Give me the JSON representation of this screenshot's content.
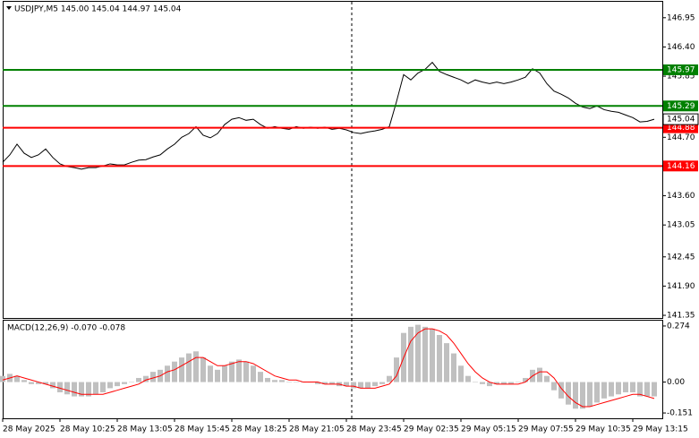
{
  "chart_data": [
    {
      "type": "line",
      "title": "USDJPY,M5  145.00 145.04 144.97 145.04",
      "categories": [
        "28 May 2025",
        null,
        null,
        null,
        null,
        null,
        null,
        null,
        "28 May 10:25",
        null,
        null,
        null,
        null,
        null,
        null,
        null,
        "28 May 13:05",
        null,
        null,
        null,
        null,
        null,
        null,
        null,
        "28 May 15:45",
        null,
        null,
        null,
        null,
        null,
        null,
        null,
        "28 May 18:25",
        null,
        null,
        null,
        null,
        null,
        null,
        null,
        "28 May 21:05",
        null,
        null,
        null,
        null,
        null,
        null,
        null,
        "28 May 23:45",
        null,
        null,
        null,
        null,
        null,
        null,
        null,
        "29 May 02:35",
        null,
        null,
        null,
        null,
        null,
        null,
        null,
        "29 May 05:15",
        null,
        null,
        null,
        null,
        null,
        null,
        null,
        "29 May 07:55",
        null,
        null,
        null,
        null,
        null,
        null,
        null,
        "29 May 10:35",
        null,
        null,
        null,
        null,
        null,
        null,
        null,
        "29 May 13:15",
        null,
        null,
        null
      ],
      "values": [
        144.23,
        144.37,
        144.57,
        144.4,
        144.32,
        144.37,
        144.48,
        144.32,
        144.2,
        144.15,
        144.13,
        144.1,
        144.13,
        144.13,
        144.16,
        144.2,
        144.18,
        144.18,
        144.23,
        144.27,
        144.28,
        144.33,
        144.37,
        144.48,
        144.57,
        144.7,
        144.77,
        144.9,
        144.74,
        144.69,
        144.77,
        144.94,
        145.04,
        145.07,
        145.02,
        145.04,
        144.94,
        144.87,
        144.9,
        144.87,
        144.85,
        144.9,
        144.87,
        144.89,
        144.87,
        144.89,
        144.85,
        144.87,
        144.84,
        144.79,
        144.77,
        144.8,
        144.82,
        144.85,
        144.9,
        145.37,
        145.88,
        145.78,
        145.91,
        145.98,
        146.11,
        145.94,
        145.88,
        145.83,
        145.78,
        145.71,
        145.78,
        145.74,
        145.71,
        145.74,
        145.71,
        145.74,
        145.78,
        145.83,
        145.99,
        145.91,
        145.71,
        145.57,
        145.51,
        145.44,
        145.34,
        145.27,
        145.24,
        145.29,
        145.22,
        145.19,
        145.17,
        145.12,
        145.07,
        144.99,
        145.0,
        145.04
      ],
      "color": "#000000",
      "levels": [
        {
          "value": 145.97,
          "color": "#008000"
        },
        {
          "value": 145.29,
          "color": "#008000"
        },
        {
          "value": 144.88,
          "color": "#ff0000"
        },
        {
          "value": 144.16,
          "color": "#ff0000"
        }
      ],
      "last_price": 145.04,
      "ylim": [
        141.3,
        147.25
      ],
      "yticks": [
        146.95,
        {
          "value": 146.4,
          "label": "146.40"
        },
        145.85,
        {
          "value": 144.7,
          "label": "144.70"
        },
        {
          "value": 143.6,
          "label": "143.60"
        },
        143.05,
        142.45,
        {
          "value": 141.9,
          "label": "141.90"
        },
        141.35
      ]
    },
    {
      "type": "bar",
      "title": "MACD(12,26,9) -0.070 -0.078",
      "series": [
        {
          "type": "bar",
          "color": "#c0c0c0",
          "values": [
            0.03,
            0.04,
            0.03,
            0.01,
            -0.01,
            -0.01,
            -0.01,
            -0.03,
            -0.05,
            -0.06,
            -0.07,
            -0.07,
            -0.07,
            -0.06,
            -0.05,
            -0.03,
            -0.02,
            -0.01,
            0,
            0.02,
            0.03,
            0.05,
            0.06,
            0.08,
            0.1,
            0.12,
            0.14,
            0.15,
            0.12,
            0.08,
            0.06,
            0.08,
            0.1,
            0.11,
            0.1,
            0.08,
            0.05,
            0.02,
            0.01,
            0.01,
            0,
            0,
            0,
            0,
            -0.01,
            -0.01,
            -0.01,
            -0.02,
            -0.02,
            -0.03,
            -0.03,
            -0.03,
            -0.02,
            -0.01,
            0.03,
            0.12,
            0.24,
            0.27,
            0.28,
            0.27,
            0.26,
            0.23,
            0.19,
            0.14,
            0.08,
            0.03,
            0,
            -0.01,
            -0.02,
            -0.01,
            -0.01,
            -0.01,
            0,
            0.02,
            0.06,
            0.07,
            0.03,
            -0.04,
            -0.08,
            -0.11,
            -0.13,
            -0.13,
            -0.12,
            -0.1,
            -0.08,
            -0.07,
            -0.06,
            -0.05,
            -0.05,
            -0.07,
            -0.07,
            -0.07
          ]
        },
        {
          "type": "line",
          "color": "#ff0000",
          "values": [
            0.01,
            0.02,
            0.03,
            0.02,
            0.01,
            0,
            -0.01,
            -0.02,
            -0.03,
            -0.04,
            -0.05,
            -0.06,
            -0.06,
            -0.06,
            -0.06,
            -0.05,
            -0.04,
            -0.03,
            -0.02,
            -0.01,
            0.01,
            0.02,
            0.03,
            0.05,
            0.06,
            0.08,
            0.1,
            0.12,
            0.12,
            0.1,
            0.08,
            0.08,
            0.09,
            0.1,
            0.1,
            0.09,
            0.07,
            0.05,
            0.03,
            0.02,
            0.01,
            0.01,
            0,
            0,
            0,
            -0.01,
            -0.01,
            -0.01,
            -0.02,
            -0.02,
            -0.03,
            -0.03,
            -0.03,
            -0.02,
            -0.01,
            0.03,
            0.12,
            0.2,
            0.24,
            0.26,
            0.26,
            0.25,
            0.23,
            0.19,
            0.14,
            0.09,
            0.05,
            0.02,
            0,
            -0.01,
            -0.01,
            -0.01,
            -0.01,
            0,
            0.03,
            0.05,
            0.05,
            0.02,
            -0.03,
            -0.07,
            -0.1,
            -0.12,
            -0.12,
            -0.11,
            -0.1,
            -0.09,
            -0.08,
            -0.07,
            -0.06,
            -0.06,
            -0.07,
            -0.08
          ]
        }
      ],
      "ylim": [
        -0.177,
        0.3
      ],
      "yticks": [
        0.274,
        {
          "value": 0,
          "label": "0.00"
        },
        -0.151
      ]
    }
  ]
}
